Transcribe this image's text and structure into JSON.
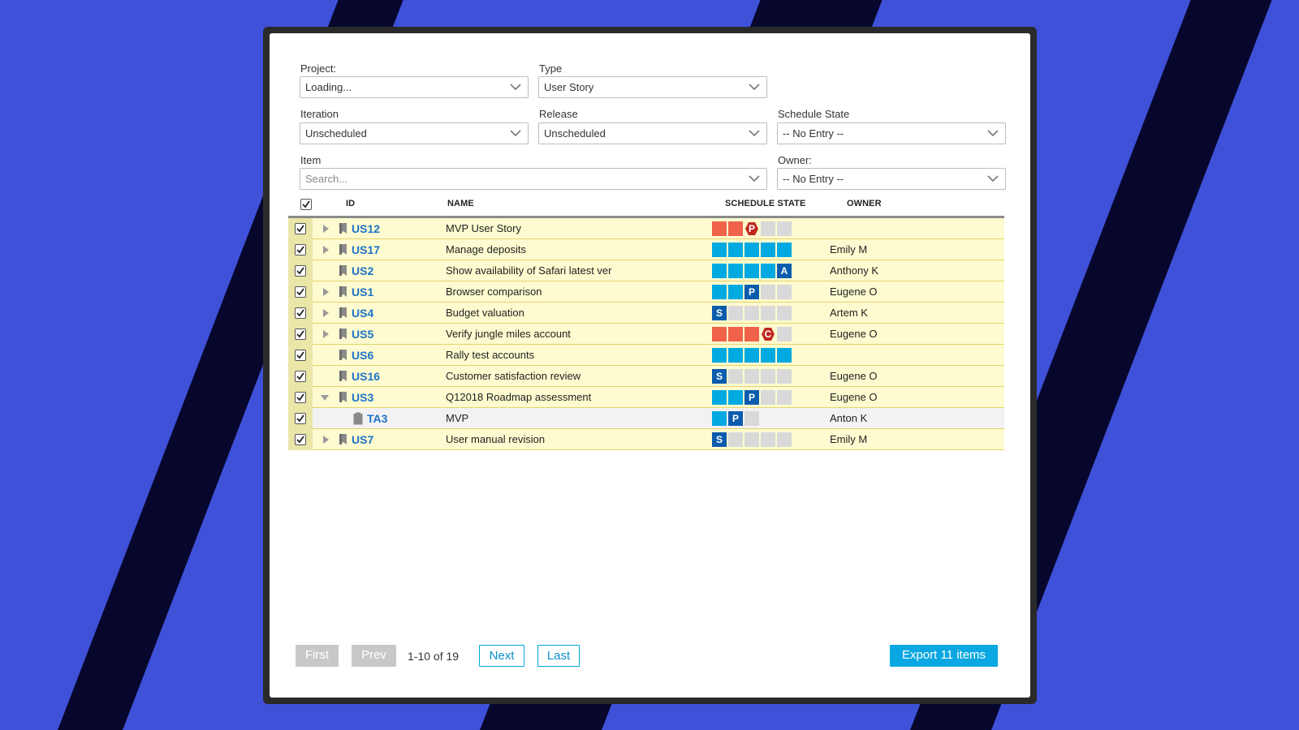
{
  "filters": {
    "project": {
      "label": "Project:",
      "value": "Loading..."
    },
    "type": {
      "label": "Type",
      "value": "User Story"
    },
    "iteration": {
      "label": "Iteration",
      "value": "Unscheduled"
    },
    "release": {
      "label": "Release",
      "value": "Unscheduled"
    },
    "schedule_state": {
      "label": "Schedule State",
      "value": "-- No Entry --"
    },
    "item": {
      "label": "Item",
      "placeholder": "Search..."
    },
    "owner": {
      "label": "Owner:",
      "value": "-- No Entry --"
    }
  },
  "grid": {
    "headers": {
      "id": "ID",
      "name": "NAME",
      "schedule_state": "SCHEDULE STATE",
      "owner": "OWNER"
    },
    "rows": [
      {
        "id": "US12",
        "name": "MVP User Story",
        "owner": "",
        "state": "P",
        "blocked": true
      },
      {
        "id": "US17",
        "name": "Manage deposits",
        "owner": "Emily M",
        "state": "Accepted"
      },
      {
        "id": "US2",
        "name": "Show availability of Safari latest ver",
        "owner": "Anthony K",
        "state": "A"
      },
      {
        "id": "US1",
        "name": "Browser comparison",
        "owner": "Eugene O",
        "state": "P"
      },
      {
        "id": "US4",
        "name": "Budget valuation",
        "owner": "Artem K",
        "state": "S"
      },
      {
        "id": "US5",
        "name": "Verify jungle miles account",
        "owner": "Eugene O",
        "state": "C",
        "blocked": true
      },
      {
        "id": "US6",
        "name": "Rally test accounts",
        "owner": "",
        "state": "Accepted"
      },
      {
        "id": "US16",
        "name": "Customer satisfaction review",
        "owner": "Eugene O",
        "state": "S"
      },
      {
        "id": "US3",
        "name": "Q12018 Roadmap assessment",
        "owner": "Eugene O",
        "state": "P"
      },
      {
        "id": "TA3",
        "name": "MVP",
        "owner": "Anton K",
        "state": "P",
        "task": true
      },
      {
        "id": "US7",
        "name": "User manual revision",
        "owner": "Emily M",
        "state": "S"
      }
    ]
  },
  "pager": {
    "first": "First",
    "prev": "Prev",
    "range": "1-10 of 19",
    "next": "Next",
    "last": "Last",
    "export": "Export 11 items"
  },
  "colors": {
    "background": "#3f51d8",
    "stripe": "#07072e",
    "link": "#1e73c9",
    "state_done": "#00a9e0",
    "state_current": "#0b5cad",
    "state_blocked": "#f0624a",
    "blocked_marker": "#c0281e",
    "row_bg": "#fdfbcf",
    "primary_button": "#0aa7e2"
  }
}
